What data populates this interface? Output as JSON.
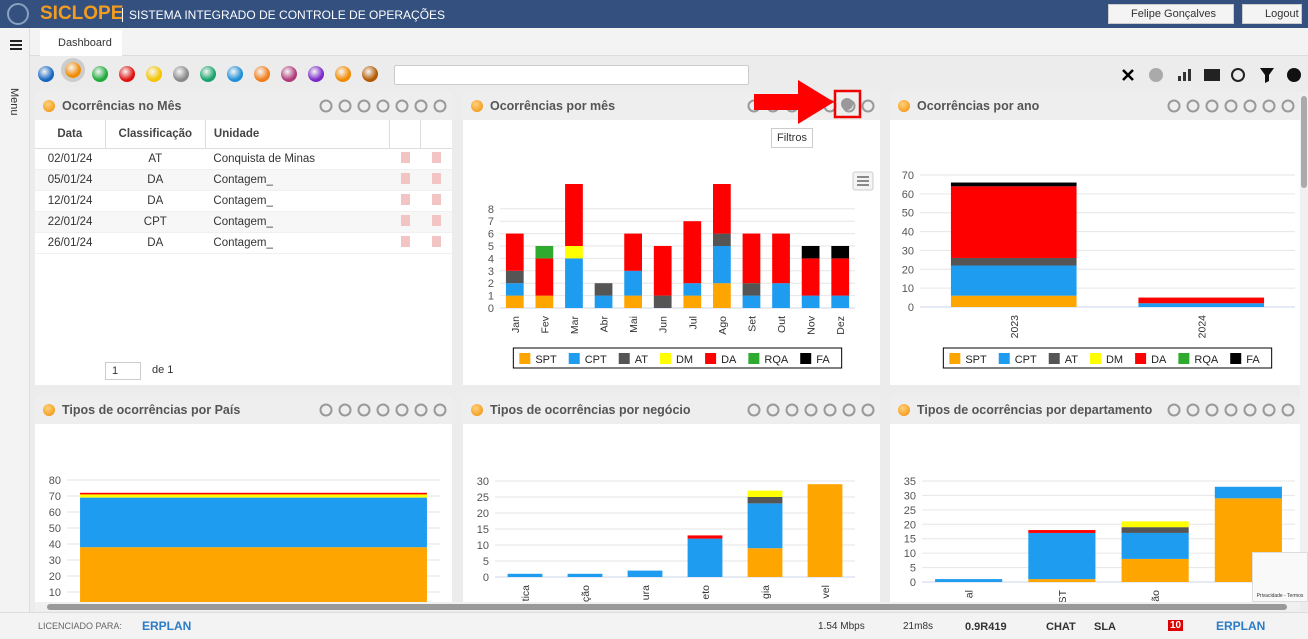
{
  "header": {
    "brand": "SICLOPE",
    "system": "SISTEMA INTEGRADO DE CONTROLE DE OPERAÇÕES",
    "user": "Felipe Gonçalves",
    "logout": "Logout"
  },
  "sidebar": {
    "menu": "Menu"
  },
  "tabs": [
    "Dashboard"
  ],
  "tooltip": "Filtros",
  "table": {
    "title": "Ocorrências no Mês",
    "columns": [
      "Data",
      "Classificação",
      "Unidade"
    ],
    "rows": [
      [
        "02/01/24",
        "AT",
        "Conquista de Minas"
      ],
      [
        "05/01/24",
        "DA",
        "Contagem_"
      ],
      [
        "12/01/24",
        "DA",
        "Contagem_"
      ],
      [
        "22/01/24",
        "CPT",
        "Contagem_"
      ],
      [
        "26/01/24",
        "DA",
        "Contagem_"
      ]
    ],
    "page": 1,
    "page_of": "de 1"
  },
  "chart_data": [
    {
      "type": "bar",
      "stacked": true,
      "title": "Ocorrências por mês",
      "categories": [
        "Jan",
        "Fev",
        "Mar",
        "Abr",
        "Mai",
        "Jun",
        "Jul",
        "Ago",
        "Set",
        "Out",
        "Nov",
        "Dez"
      ],
      "series": [
        {
          "name": "SPT",
          "color": "#ffa500",
          "values": [
            1,
            1,
            0,
            0,
            1,
            0,
            1,
            2,
            0,
            0,
            0,
            0
          ]
        },
        {
          "name": "CPT",
          "color": "#1e9cf0",
          "values": [
            1,
            0,
            4,
            1,
            2,
            0,
            1,
            3,
            1,
            2,
            1,
            1
          ]
        },
        {
          "name": "AT",
          "color": "#555555",
          "values": [
            1,
            0,
            0,
            1,
            0,
            1,
            0,
            1,
            1,
            0,
            0,
            0
          ]
        },
        {
          "name": "DM",
          "color": "#ffff00",
          "values": [
            0,
            0,
            1,
            0,
            0,
            0,
            0,
            0,
            0,
            0,
            0,
            0
          ]
        },
        {
          "name": "DA",
          "color": "#ff0000",
          "values": [
            3,
            3,
            5,
            0,
            3,
            4,
            5,
            4,
            4,
            4,
            3,
            3
          ]
        },
        {
          "name": "RQA",
          "color": "#2eaa2e",
          "values": [
            0,
            1,
            0,
            0,
            0,
            0,
            0,
            0,
            0,
            0,
            0,
            0
          ]
        },
        {
          "name": "FA",
          "color": "#000000",
          "values": [
            0,
            0,
            0,
            0,
            0,
            0,
            0,
            0,
            0,
            0,
            1,
            1
          ]
        }
      ],
      "ylim": [
        0,
        10
      ],
      "yticks": [
        0,
        1,
        2,
        3,
        4,
        5,
        6,
        7,
        8
      ],
      "grid": true,
      "legend": "bottom"
    },
    {
      "type": "bar",
      "stacked": true,
      "title": "Ocorrências por ano",
      "categories": [
        "2023",
        "2024"
      ],
      "series": [
        {
          "name": "SPT",
          "color": "#ffa500",
          "values": [
            6,
            0
          ]
        },
        {
          "name": "CPT",
          "color": "#1e9cf0",
          "values": [
            16,
            2
          ]
        },
        {
          "name": "AT",
          "color": "#555555",
          "values": [
            4,
            0
          ]
        },
        {
          "name": "DM",
          "color": "#ffff00",
          "values": [
            0,
            0
          ]
        },
        {
          "name": "DA",
          "color": "#ff0000",
          "values": [
            38,
            3
          ]
        },
        {
          "name": "RQA",
          "color": "#2eaa2e",
          "values": [
            0,
            0
          ]
        },
        {
          "name": "FA",
          "color": "#000000",
          "values": [
            2,
            0
          ]
        }
      ],
      "ylim": [
        0,
        70
      ],
      "yticks": [
        0,
        10,
        20,
        30,
        40,
        50,
        60,
        70
      ],
      "grid": true,
      "legend": "bottom"
    },
    {
      "type": "bar",
      "stacked": true,
      "title": "Tipos de ocorrências por País",
      "series": [
        {
          "color": "#ffa500",
          "values": [
            38
          ]
        },
        {
          "color": "#1e9cf0",
          "values": [
            31
          ]
        },
        {
          "color": "#ffff00",
          "values": [
            2
          ]
        },
        {
          "color": "#ff0000",
          "values": [
            1
          ]
        }
      ],
      "ylim": [
        0,
        80
      ],
      "yticks": [
        0,
        10,
        20,
        30,
        40,
        50,
        60,
        70,
        80
      ],
      "grid": true
    },
    {
      "type": "bar",
      "stacked": true,
      "title": "Tipos de ocorrências por negócio",
      "categories": [
        "tica",
        "ção",
        "ura",
        "eto",
        "gia",
        "vel"
      ],
      "series": [
        {
          "color": "#ffa500",
          "values": [
            0,
            0,
            0,
            0,
            9,
            29
          ]
        },
        {
          "color": "#1e9cf0",
          "values": [
            1,
            1,
            2,
            12,
            14,
            0
          ]
        },
        {
          "color": "#555555",
          "values": [
            0,
            0,
            0,
            0,
            2,
            0
          ]
        },
        {
          "color": "#ffff00",
          "values": [
            0,
            0,
            0,
            0,
            2,
            0
          ]
        },
        {
          "color": "#ff0000",
          "values": [
            0,
            0,
            0,
            1,
            0,
            0
          ]
        }
      ],
      "ylim": [
        0,
        30
      ],
      "yticks": [
        0,
        5,
        10,
        15,
        20,
        25,
        30
      ],
      "grid": true
    },
    {
      "type": "bar",
      "stacked": true,
      "title": "Tipos de ocorrências por departamento",
      "categories": [
        "al",
        "ST",
        "ão",
        null
      ],
      "series": [
        {
          "color": "#ffa500",
          "values": [
            0,
            1,
            8,
            29
          ]
        },
        {
          "color": "#1e9cf0",
          "values": [
            1,
            16,
            9,
            4
          ]
        },
        {
          "color": "#555555",
          "values": [
            0,
            0,
            2,
            0
          ]
        },
        {
          "color": "#ffff00",
          "values": [
            0,
            0,
            2,
            0
          ]
        },
        {
          "color": "#ff0000",
          "values": [
            0,
            1,
            0,
            0
          ]
        }
      ],
      "ylim": [
        0,
        35
      ],
      "yticks": [
        0,
        5,
        10,
        15,
        20,
        25,
        30,
        35
      ],
      "grid": true
    }
  ],
  "recaptcha": "Privacidade - Termos",
  "footer": {
    "licensed": "LICENCIADO PARA:",
    "company": "ERPLAN",
    "speed": "1.54 Mbps",
    "time": "21m8s",
    "version": "0.9R419",
    "chat": "CHAT",
    "sla": "SLA",
    "badge": 10,
    "company2": "ERPLAN"
  }
}
